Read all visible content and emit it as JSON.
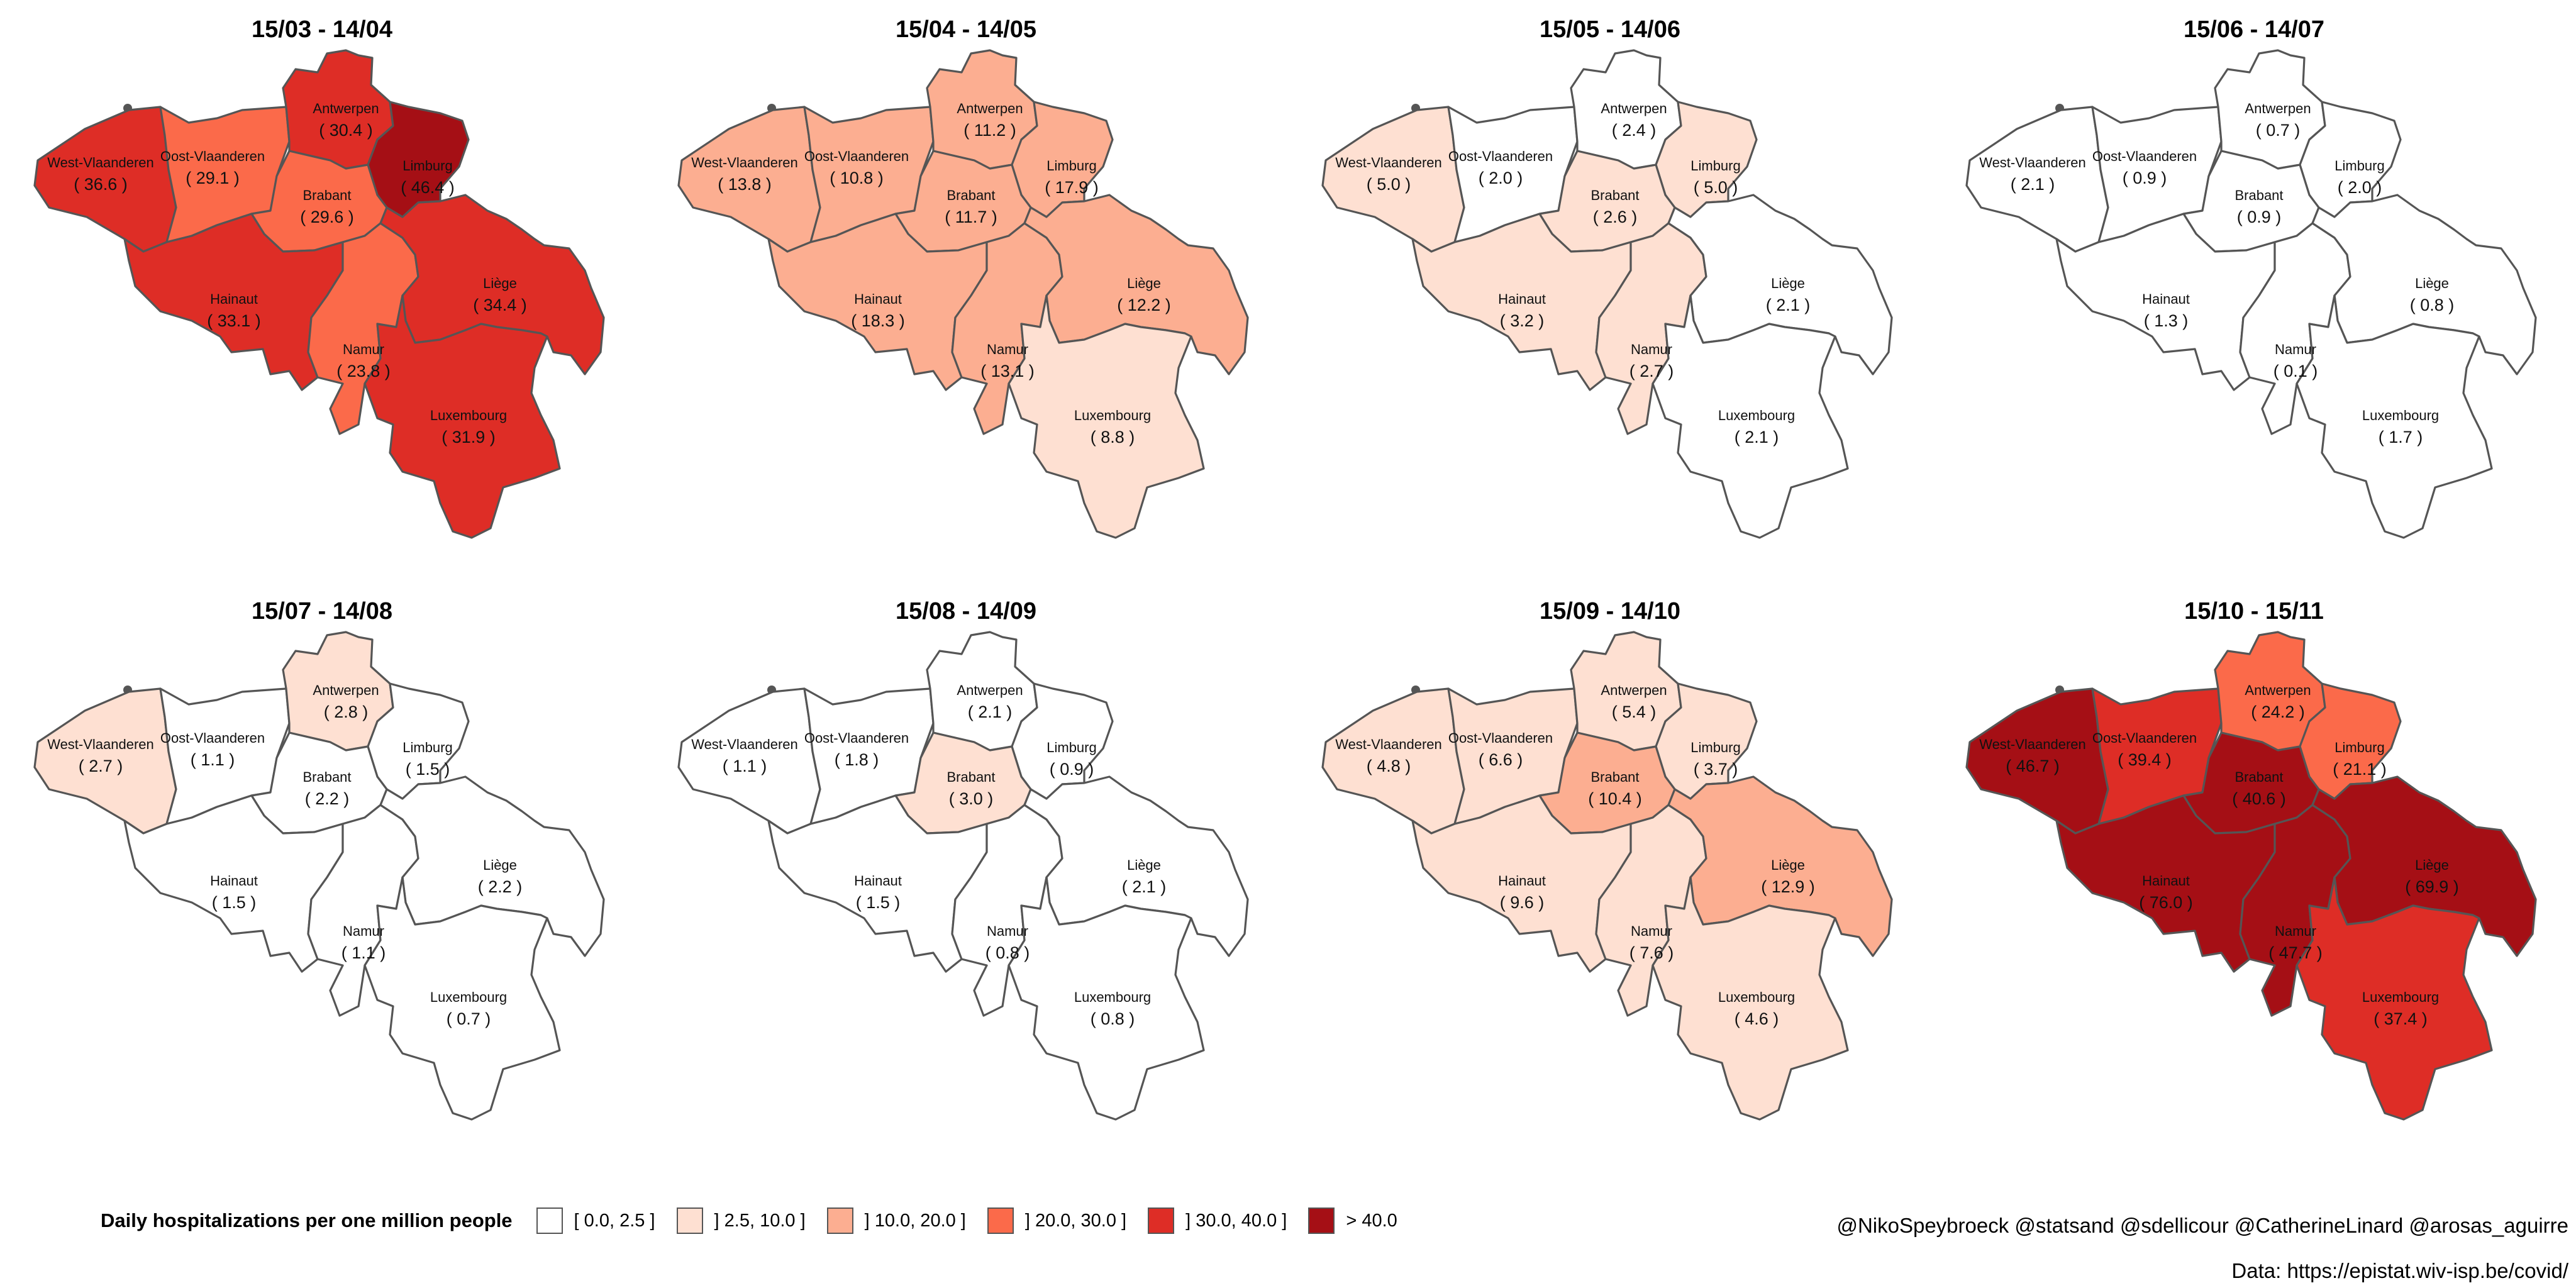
{
  "legend": {
    "title": "Daily hospitalizations per one million people",
    "items": [
      {
        "label": "[ 0.0, 2.5 ]",
        "color": "#ffffff",
        "min": 0,
        "max": 2.5
      },
      {
        "label": "] 2.5, 10.0 ]",
        "color": "#fee0d2",
        "min": 2.5,
        "max": 10
      },
      {
        "label": "] 10.0, 20.0 ]",
        "color": "#fcae91",
        "min": 10,
        "max": 20
      },
      {
        "label": "] 20.0, 30.0 ]",
        "color": "#fb6a4a",
        "min": 20,
        "max": 30
      },
      {
        "label": "] 30.0, 40.0 ]",
        "color": "#de2d26",
        "min": 30,
        "max": 40
      },
      {
        "label": "> 40.0",
        "color": "#a50f15",
        "min": 40,
        "max": null
      }
    ]
  },
  "credits": "@NikoSpeybroeck @statsand @sdellicour @CatherineLinard @arosas_aguirre",
  "source": "Data: https://epistat.wiv-isp.be/covid/",
  "provinces": [
    "West-Vlaanderen",
    "Oost-Vlaanderen",
    "Antwerpen",
    "Limburg",
    "Brabant",
    "Hainaut",
    "Namur",
    "Liège",
    "Luxembourg"
  ],
  "panels": [
    {
      "title": "15/03 - 14/04",
      "values": {
        "West-Vlaanderen": 36.6,
        "Oost-Vlaanderen": 29.1,
        "Antwerpen": 30.4,
        "Limburg": 46.4,
        "Brabant": 29.6,
        "Hainaut": 33.1,
        "Namur": 23.8,
        "Liège": 34.4,
        "Luxembourg": 31.9
      }
    },
    {
      "title": "15/04 - 14/05",
      "values": {
        "West-Vlaanderen": 13.8,
        "Oost-Vlaanderen": 10.8,
        "Antwerpen": 11.2,
        "Limburg": 17.9,
        "Brabant": 11.7,
        "Hainaut": 18.3,
        "Namur": 13.1,
        "Liège": 12.2,
        "Luxembourg": 8.8
      }
    },
    {
      "title": "15/05 - 14/06",
      "values": {
        "West-Vlaanderen": 5.0,
        "Oost-Vlaanderen": 2.0,
        "Antwerpen": 2.4,
        "Limburg": 5.0,
        "Brabant": 2.6,
        "Hainaut": 3.2,
        "Namur": 2.7,
        "Liège": 2.1,
        "Luxembourg": 2.1
      }
    },
    {
      "title": "15/06 - 14/07",
      "values": {
        "West-Vlaanderen": 2.1,
        "Oost-Vlaanderen": 0.9,
        "Antwerpen": 0.7,
        "Limburg": 2.0,
        "Brabant": 0.9,
        "Hainaut": 1.3,
        "Namur": 0.1,
        "Liège": 0.8,
        "Luxembourg": 1.7
      }
    },
    {
      "title": "15/07 - 14/08",
      "values": {
        "West-Vlaanderen": 2.7,
        "Oost-Vlaanderen": 1.1,
        "Antwerpen": 2.8,
        "Limburg": 1.5,
        "Brabant": 2.2,
        "Hainaut": 1.5,
        "Namur": 1.1,
        "Liège": 2.2,
        "Luxembourg": 0.7
      }
    },
    {
      "title": "15/08 - 14/09",
      "values": {
        "West-Vlaanderen": 1.1,
        "Oost-Vlaanderen": 1.8,
        "Antwerpen": 2.1,
        "Limburg": 0.9,
        "Brabant": 3.0,
        "Hainaut": 1.5,
        "Namur": 0.8,
        "Liège": 2.1,
        "Luxembourg": 0.8
      }
    },
    {
      "title": "15/09 - 14/10",
      "values": {
        "West-Vlaanderen": 4.8,
        "Oost-Vlaanderen": 6.6,
        "Antwerpen": 5.4,
        "Limburg": 3.7,
        "Brabant": 10.4,
        "Hainaut": 9.6,
        "Namur": 7.6,
        "Liège": 12.9,
        "Luxembourg": 4.6
      }
    },
    {
      "title": "15/10 - 15/11",
      "values": {
        "West-Vlaanderen": 46.7,
        "Oost-Vlaanderen": 39.4,
        "Antwerpen": 24.2,
        "Limburg": 21.1,
        "Brabant": 40.6,
        "Hainaut": 76.0,
        "Namur": 47.7,
        "Liège": 69.9,
        "Luxembourg": 37.4
      }
    }
  ]
}
